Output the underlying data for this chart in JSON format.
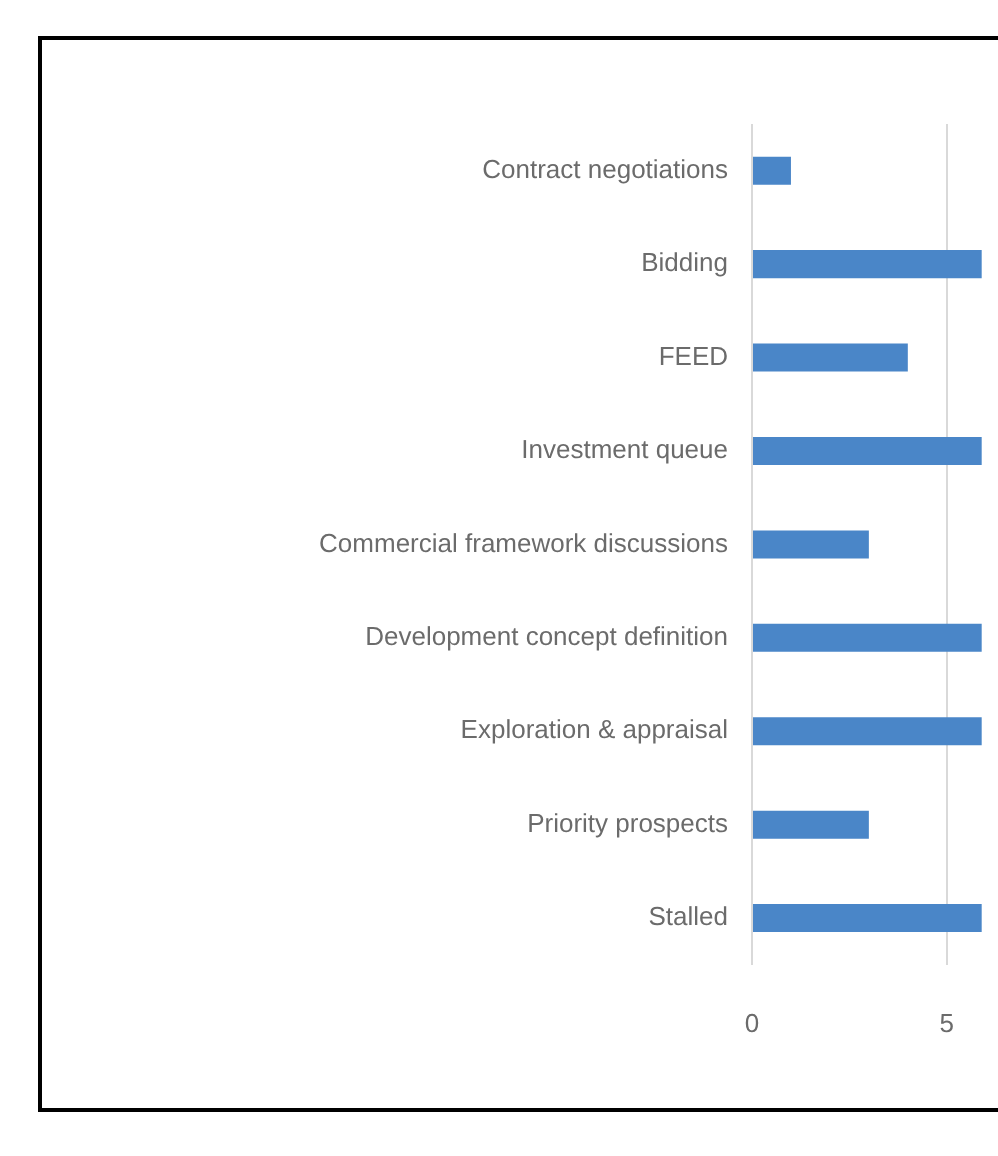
{
  "chart_data": {
    "type": "bar",
    "orientation": "horizontal",
    "categories": [
      "Contract negotiations",
      "Bidding",
      "FEED",
      "Investment queue",
      "Commercial framework discussions",
      "Development concept definition",
      "Exploration & appraisal",
      "Priority prospects",
      "Stalled"
    ],
    "values": [
      1,
      5.9,
      4,
      5.9,
      3,
      5.9,
      5.9,
      3,
      5.9
    ],
    "color": "#4a86c8",
    "xlim": [
      0,
      5.9
    ],
    "xticks": [
      0,
      5
    ],
    "grid": "x",
    "legend": false
  }
}
